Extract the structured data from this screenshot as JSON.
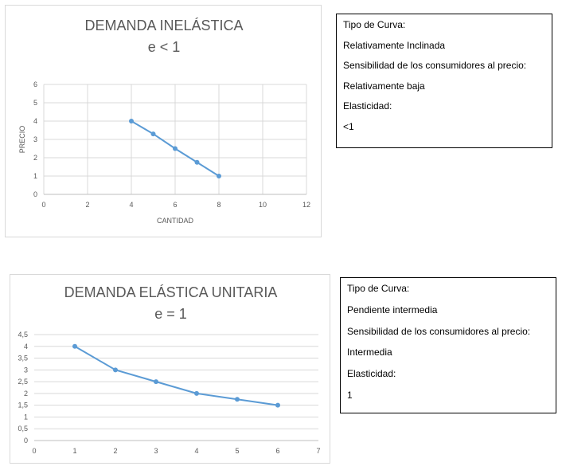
{
  "charts": [
    {
      "id": "chart1",
      "chart_data": {
        "type": "line",
        "title": "DEMANDA INELÁSTICA",
        "subtitle": "e < 1",
        "xlabel": "CANTIDAD",
        "ylabel": "PRECIO",
        "xlim": [
          0,
          12
        ],
        "ylim": [
          0,
          6
        ],
        "x_ticks": [
          "0",
          "2",
          "4",
          "6",
          "8",
          "10",
          "12"
        ],
        "y_ticks": [
          "0",
          "1",
          "2",
          "3",
          "4",
          "5",
          "6"
        ],
        "grid": true,
        "series": [
          {
            "x": [
              4,
              5,
              6,
              7,
              8
            ],
            "y": [
              4,
              3.3,
              2.5,
              1.75,
              1
            ]
          }
        ],
        "color": "#5b9bd5"
      }
    },
    {
      "id": "chart2",
      "chart_data": {
        "type": "line",
        "title": "DEMANDA ELÁSTICA UNITARIA",
        "subtitle": "e = 1",
        "xlabel": "",
        "ylabel": "",
        "xlim": [
          0,
          7
        ],
        "ylim": [
          0,
          4.5
        ],
        "x_ticks": [
          "0",
          "1",
          "2",
          "3",
          "4",
          "5",
          "6",
          "7"
        ],
        "y_ticks": [
          "0",
          "0,5",
          "1",
          "1,5",
          "2",
          "2,5",
          "3",
          "3,5",
          "4",
          "4,5"
        ],
        "grid": true,
        "series": [
          {
            "x": [
              1,
              2,
              3,
              4,
              5,
              6
            ],
            "y": [
              4,
              3,
              2.5,
              2,
              1.75,
              1.5
            ]
          }
        ],
        "color": "#5b9bd5"
      }
    }
  ],
  "info1": {
    "lines": [
      "Tipo de Curva:",
      "Relativamente Inclinada",
      "Sensibilidad de los consumidores al precio:",
      "Relativamente baja",
      "Elasticidad:",
      "<1"
    ]
  },
  "info2": {
    "lines": [
      "Tipo de Curva:",
      "Pendiente intermedia",
      "Sensibilidad de los consumidores al precio:",
      "Intermedia",
      "Elasticidad:",
      "1"
    ]
  }
}
